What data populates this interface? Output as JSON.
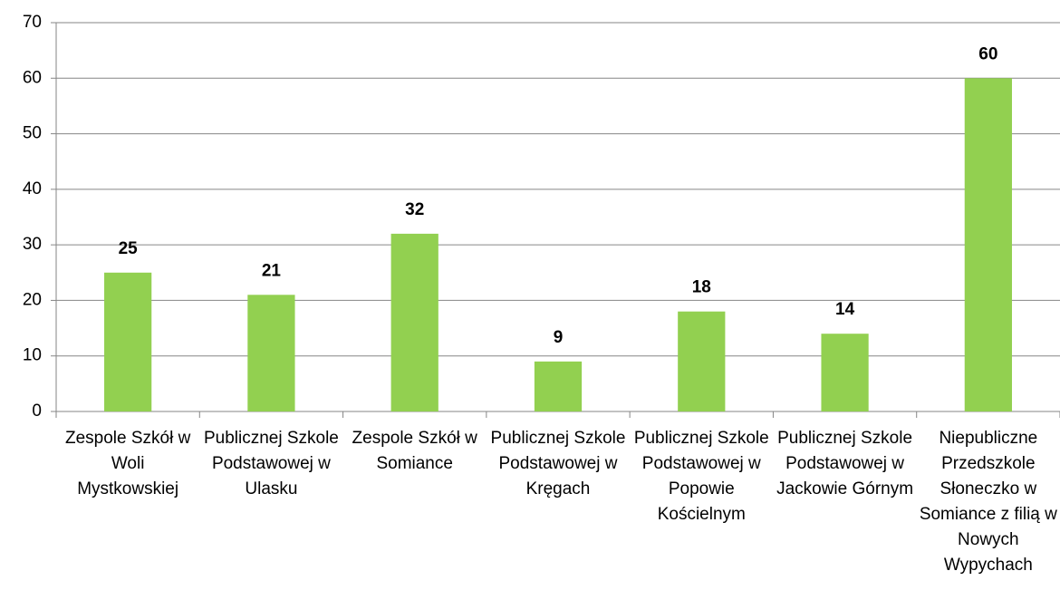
{
  "chart_data": {
    "type": "bar",
    "categories": [
      "Zespole Szkół w Woli Mystkowskiej",
      "Publicznej Szkole Podstawowej w Ulasku",
      "Zespole Szkół w Somiance",
      "Publicznej Szkole Podstawowej w Kręgach",
      "Publicznej Szkole Podstawowej w Popowie Kościelnym",
      "Publicznej Szkole Podstawowej w Jackowie Górnym",
      "Niepubliczne Przedszkole Słoneczko w Somiance z filią w Nowych Wypychach"
    ],
    "values": [
      25,
      21,
      32,
      9,
      18,
      14,
      60
    ],
    "color": "#92d050",
    "ylim": [
      0,
      70
    ],
    "yticks": [
      0,
      10,
      20,
      30,
      40,
      50,
      60,
      70
    ],
    "grid": true
  }
}
